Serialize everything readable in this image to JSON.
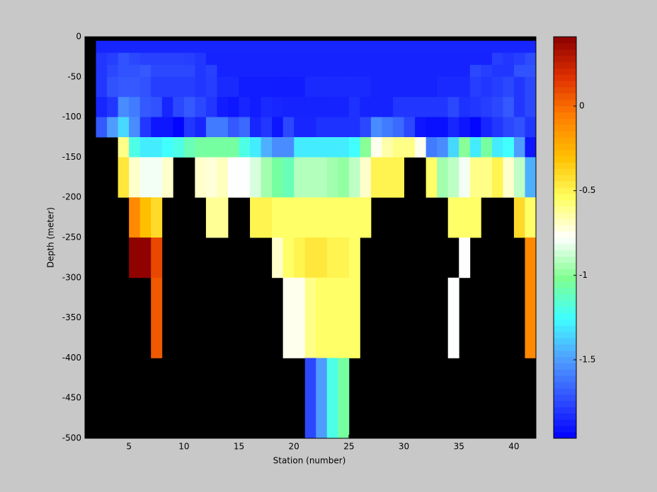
{
  "chart_data": {
    "type": "heatmap",
    "xlabel": "Station (number)",
    "ylabel": "Depth (meter)",
    "xlim": [
      1,
      42
    ],
    "ylim": [
      -500,
      0
    ],
    "xticks": [
      5,
      10,
      15,
      20,
      25,
      30,
      35,
      40
    ],
    "yticks": [
      0,
      -50,
      -100,
      -150,
      -200,
      -250,
      -300,
      -350,
      -400,
      -450,
      -500
    ],
    "xbins": [
      2,
      3,
      4,
      5,
      6,
      7,
      8,
      9,
      10,
      11,
      12,
      13,
      14,
      15,
      16,
      17,
      18,
      19,
      20,
      21,
      22,
      23,
      24,
      25,
      26,
      27,
      28,
      29,
      30,
      31,
      32,
      33,
      34,
      35,
      36,
      37,
      38,
      39,
      40,
      41,
      42
    ],
    "ybins": [
      -5,
      -20,
      -35,
      -50,
      -75,
      -100,
      -125,
      -150,
      -200,
      -250,
      -300,
      -400,
      -500
    ],
    "clim": [
      -1.964,
      0.41
    ],
    "cticks": [
      0,
      -0.5,
      -1,
      -1.5
    ],
    "colormap": [
      "#0000ff",
      "#3050ff",
      "#50a0ff",
      "#40ffff",
      "#80ff90",
      "#ffffff",
      "#ffff60",
      "#ffc000",
      "#ff8000",
      "#e03000",
      "#8b0000"
    ],
    "background": "#000000",
    "z": [
      [
        -1.85,
        -1.85,
        -1.85,
        -1.85,
        -1.85,
        -1.85,
        -1.85,
        -1.85,
        -1.85,
        -1.85,
        -1.85,
        -1.85,
        -1.85,
        -1.85,
        -1.85,
        -1.85,
        -1.85,
        -1.85,
        -1.85,
        -1.85,
        -1.85,
        -1.85,
        -1.85,
        -1.85,
        -1.85,
        -1.85,
        -1.85,
        -1.85,
        -1.85,
        -1.85,
        -1.85,
        -1.85,
        -1.85,
        -1.85,
        -1.85,
        -1.85,
        -1.85,
        -1.85,
        -1.85,
        -1.85
      ],
      [
        -1.8,
        -1.78,
        -1.72,
        -1.75,
        -1.77,
        -1.77,
        -1.77,
        -1.77,
        -1.78,
        -1.8,
        -1.86,
        -1.86,
        -1.86,
        -1.86,
        -1.86,
        -1.86,
        -1.86,
        -1.86,
        -1.86,
        -1.86,
        -1.86,
        -1.86,
        -1.86,
        -1.86,
        -1.86,
        -1.86,
        -1.86,
        -1.86,
        -1.86,
        -1.86,
        -1.86,
        -1.86,
        -1.86,
        -1.86,
        -1.86,
        -1.86,
        -1.78,
        -1.8,
        -1.78,
        -1.74
      ],
      [
        -1.8,
        -1.75,
        -1.72,
        -1.72,
        -1.7,
        -1.75,
        -1.75,
        -1.75,
        -1.75,
        -1.8,
        -1.77,
        -1.86,
        -1.86,
        -1.86,
        -1.86,
        -1.86,
        -1.86,
        -1.86,
        -1.86,
        -1.86,
        -1.86,
        -1.86,
        -1.86,
        -1.86,
        -1.86,
        -1.86,
        -1.86,
        -1.86,
        -1.86,
        -1.86,
        -1.86,
        -1.86,
        -1.86,
        -1.86,
        -1.75,
        -1.78,
        -1.8,
        -1.8,
        -1.72,
        -1.72
      ],
      [
        -1.8,
        -1.72,
        -1.7,
        -1.7,
        -1.72,
        -1.78,
        -1.78,
        -1.78,
        -1.78,
        -1.8,
        -1.78,
        -1.84,
        -1.84,
        -1.88,
        -1.88,
        -1.88,
        -1.88,
        -1.88,
        -1.88,
        -1.84,
        -1.84,
        -1.84,
        -1.84,
        -1.84,
        -1.84,
        -1.86,
        -1.86,
        -1.86,
        -1.86,
        -1.86,
        -1.86,
        -1.84,
        -1.84,
        -1.84,
        -1.78,
        -1.8,
        -1.78,
        -1.75,
        -1.8,
        -1.75
      ],
      [
        -1.85,
        -1.8,
        -1.55,
        -1.6,
        -1.7,
        -1.72,
        -1.85,
        -1.75,
        -1.7,
        -1.75,
        -1.8,
        -1.88,
        -1.9,
        -1.85,
        -1.88,
        -1.84,
        -1.85,
        -1.86,
        -1.86,
        -1.86,
        -1.86,
        -1.86,
        -1.86,
        -1.82,
        -1.86,
        -1.86,
        -1.86,
        -1.8,
        -1.8,
        -1.8,
        -1.8,
        -1.8,
        -1.75,
        -1.82,
        -1.8,
        -1.78,
        -1.75,
        -1.7,
        -1.8,
        -1.75
      ],
      [
        -1.7,
        -1.5,
        -1.35,
        -1.55,
        -1.8,
        -1.9,
        -1.9,
        -1.95,
        -1.8,
        -1.85,
        -1.6,
        -1.6,
        -1.7,
        -1.65,
        -1.85,
        -1.8,
        -1.9,
        -1.75,
        -1.85,
        -1.85,
        -1.82,
        -1.82,
        -1.82,
        -1.82,
        -1.75,
        -1.55,
        -1.6,
        -1.65,
        -1.75,
        -1.9,
        -1.92,
        -1.92,
        -1.85,
        -1.9,
        -1.95,
        -1.85,
        -1.8,
        -1.75,
        -1.72,
        -1.8
      ],
      [
        null,
        null,
        -0.6,
        -1.2,
        -1.3,
        -1.3,
        -1.25,
        -1.2,
        -1.1,
        -1.05,
        -1.05,
        -1.05,
        -1.05,
        -1.2,
        -1.3,
        -1.45,
        -1.55,
        -1.55,
        -1.3,
        -1.3,
        -1.3,
        -1.3,
        -1.3,
        -1.25,
        -1.0,
        -0.75,
        -0.65,
        -0.6,
        -0.6,
        -0.75,
        -1.6,
        -1.55,
        -1.35,
        -1.0,
        -1.3,
        -1.05,
        -1.3,
        -1.25,
        -1.5,
        -1.9
      ],
      [
        null,
        null,
        -0.45,
        -0.7,
        -0.8,
        -0.8,
        -0.7,
        null,
        null,
        -0.7,
        -0.72,
        -0.68,
        -0.78,
        -0.78,
        -0.85,
        -0.95,
        -1.05,
        -1.1,
        -0.92,
        -0.92,
        -0.92,
        -0.95,
        -0.98,
        -0.9,
        -0.7,
        -0.5,
        -0.5,
        -0.5,
        null,
        null,
        -0.55,
        -0.95,
        -0.9,
        -0.8,
        -0.6,
        -0.6,
        -0.5,
        -0.7,
        -0.9,
        -1.45
      ],
      [
        null,
        null,
        null,
        -0.1,
        -0.3,
        -0.4,
        null,
        null,
        null,
        null,
        -0.62,
        -0.62,
        null,
        null,
        -0.5,
        -0.5,
        -0.55,
        -0.55,
        -0.55,
        -0.55,
        -0.55,
        -0.55,
        -0.55,
        -0.55,
        -0.55,
        null,
        null,
        null,
        null,
        null,
        null,
        null,
        -0.55,
        -0.55,
        -0.55,
        null,
        null,
        null,
        -0.4,
        -0.55
      ],
      [
        null,
        null,
        null,
        0.4,
        0.4,
        0.1,
        null,
        null,
        null,
        null,
        null,
        null,
        null,
        null,
        null,
        null,
        -0.7,
        -0.55,
        -0.5,
        -0.45,
        -0.45,
        -0.5,
        -0.5,
        -0.55,
        null,
        null,
        null,
        null,
        null,
        null,
        null,
        null,
        null,
        -0.78,
        null,
        null,
        null,
        null,
        null,
        -0.1
      ],
      [
        null,
        null,
        null,
        null,
        null,
        0.05,
        null,
        null,
        null,
        null,
        null,
        null,
        null,
        null,
        null,
        null,
        null,
        -0.75,
        -0.75,
        -0.6,
        -0.55,
        -0.55,
        -0.55,
        -0.55,
        null,
        null,
        null,
        null,
        null,
        null,
        null,
        null,
        -0.78,
        null,
        null,
        null,
        null,
        null,
        null,
        -0.1
      ],
      [
        null,
        null,
        null,
        null,
        null,
        null,
        null,
        null,
        null,
        null,
        null,
        null,
        null,
        null,
        null,
        null,
        null,
        null,
        null,
        -1.75,
        -1.5,
        -1.2,
        -1.05,
        null,
        null,
        null,
        null,
        null,
        null,
        null,
        null,
        null,
        null,
        null,
        null,
        null,
        null,
        null,
        null,
        null
      ]
    ]
  }
}
